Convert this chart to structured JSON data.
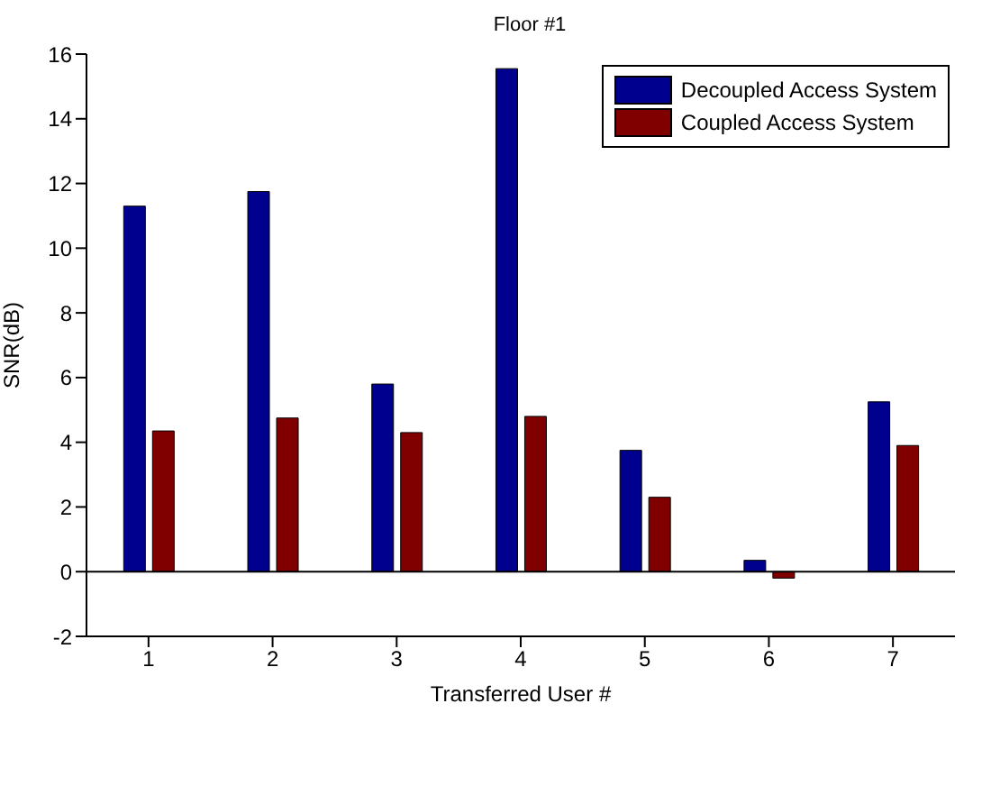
{
  "chart_data": {
    "type": "bar",
    "title": "Floor #1",
    "xlabel": "Transferred User #",
    "ylabel": "SNR(dB)",
    "categories": [
      "1",
      "2",
      "3",
      "4",
      "5",
      "6",
      "7"
    ],
    "series": [
      {
        "name": "Decoupled Access System",
        "color": "#00008f",
        "values": [
          11.3,
          11.75,
          5.8,
          15.55,
          3.75,
          0.35,
          5.25
        ]
      },
      {
        "name": "Coupled Access System",
        "color": "#800000",
        "values": [
          4.35,
          4.75,
          4.3,
          4.8,
          2.3,
          -0.2,
          3.9
        ]
      }
    ],
    "ylim": [
      -2,
      16
    ],
    "yticks": [
      -2,
      0,
      2,
      4,
      6,
      8,
      10,
      12,
      14,
      16
    ],
    "ref_lines": [
      {
        "axis": "y",
        "value": 0,
        "color": "#000000"
      }
    ],
    "legend": "top right",
    "grid": false
  }
}
